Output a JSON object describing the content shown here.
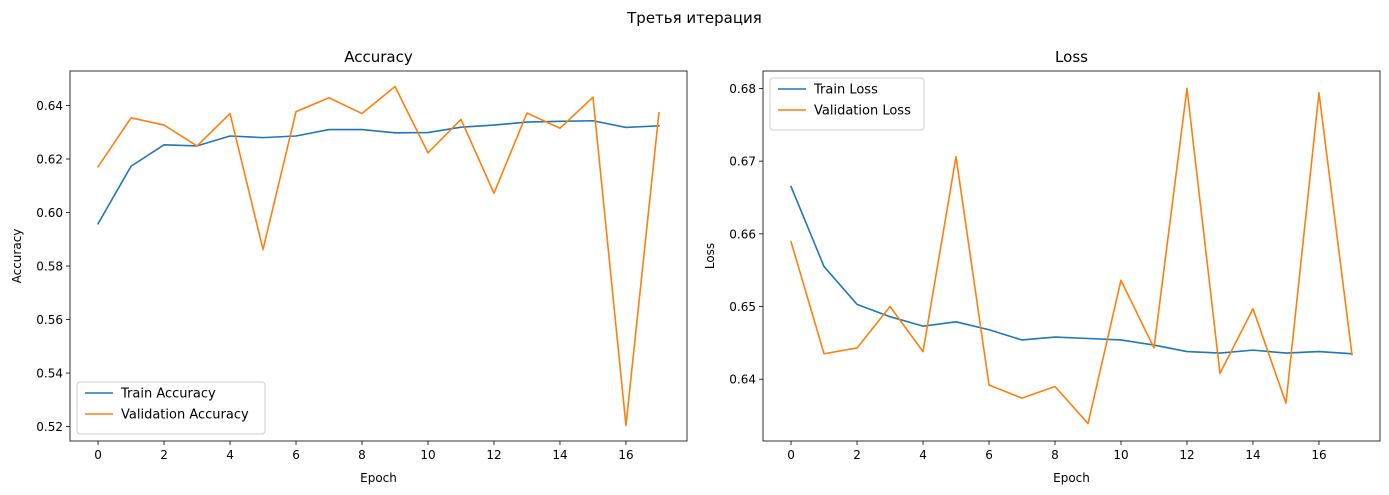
{
  "figure": {
    "suptitle": "Третья итерация"
  },
  "colors": {
    "train": "#1f77b4",
    "validation": "#ff7f0e"
  },
  "chart_data": [
    {
      "type": "line",
      "title": "Accuracy",
      "xlabel": "Epoch",
      "ylabel": "Accuracy",
      "x": [
        0,
        1,
        2,
        3,
        4,
        5,
        6,
        7,
        8,
        9,
        10,
        11,
        12,
        13,
        14,
        15,
        16,
        17
      ],
      "xlim": [
        -0.85,
        17.85
      ],
      "ylim": [
        0.5146,
        0.6529
      ],
      "xticks": [
        0,
        2,
        4,
        6,
        8,
        10,
        12,
        14,
        16
      ],
      "yticks": [
        0.52,
        0.54,
        0.56,
        0.58,
        0.6,
        0.62,
        0.64
      ],
      "ytick_labels": [
        "0.52",
        "0.54",
        "0.56",
        "0.58",
        "0.60",
        "0.62",
        "0.64"
      ],
      "legend_position": "lower-left",
      "grid": false,
      "series": [
        {
          "name": "Train Accuracy",
          "color": "#1f77b4",
          "values": [
            0.5958,
            0.6173,
            0.6253,
            0.6249,
            0.6286,
            0.628,
            0.6286,
            0.631,
            0.631,
            0.6298,
            0.6299,
            0.6319,
            0.6327,
            0.6338,
            0.6341,
            0.6343,
            0.6318,
            0.6324
          ]
        },
        {
          "name": "Validation Accuracy",
          "color": "#ff7f0e",
          "values": [
            0.6171,
            0.6354,
            0.6327,
            0.6249,
            0.637,
            0.5862,
            0.6377,
            0.6429,
            0.637,
            0.6471,
            0.6223,
            0.6348,
            0.6072,
            0.6372,
            0.6315,
            0.6431,
            0.5204,
            0.6373
          ]
        }
      ]
    },
    {
      "type": "line",
      "title": "Loss",
      "xlabel": "Epoch",
      "ylabel": "Loss",
      "x": [
        0,
        1,
        2,
        3,
        4,
        5,
        6,
        7,
        8,
        9,
        10,
        11,
        12,
        13,
        14,
        15,
        16,
        17
      ],
      "xlim": [
        -0.85,
        17.85
      ],
      "ylim": [
        0.6315,
        0.6824
      ],
      "xticks": [
        0,
        2,
        4,
        6,
        8,
        10,
        12,
        14,
        16
      ],
      "yticks": [
        0.64,
        0.65,
        0.66,
        0.67,
        0.68
      ],
      "ytick_labels": [
        "0.64",
        "0.65",
        "0.66",
        "0.67",
        "0.68"
      ],
      "legend_position": "upper-left",
      "grid": false,
      "series": [
        {
          "name": "Train Loss",
          "color": "#1f77b4",
          "values": [
            0.6665,
            0.6555,
            0.6503,
            0.6486,
            0.6473,
            0.6479,
            0.6468,
            0.6454,
            0.6458,
            0.6456,
            0.6454,
            0.6447,
            0.6438,
            0.6436,
            0.644,
            0.6436,
            0.6438,
            0.6435
          ]
        },
        {
          "name": "Validation Loss",
          "color": "#ff7f0e",
          "values": [
            0.6589,
            0.6435,
            0.6443,
            0.65,
            0.6438,
            0.6706,
            0.6392,
            0.6374,
            0.639,
            0.6339,
            0.6536,
            0.6443,
            0.68,
            0.6408,
            0.6497,
            0.6367,
            0.6794,
            0.6434
          ]
        }
      ]
    }
  ]
}
